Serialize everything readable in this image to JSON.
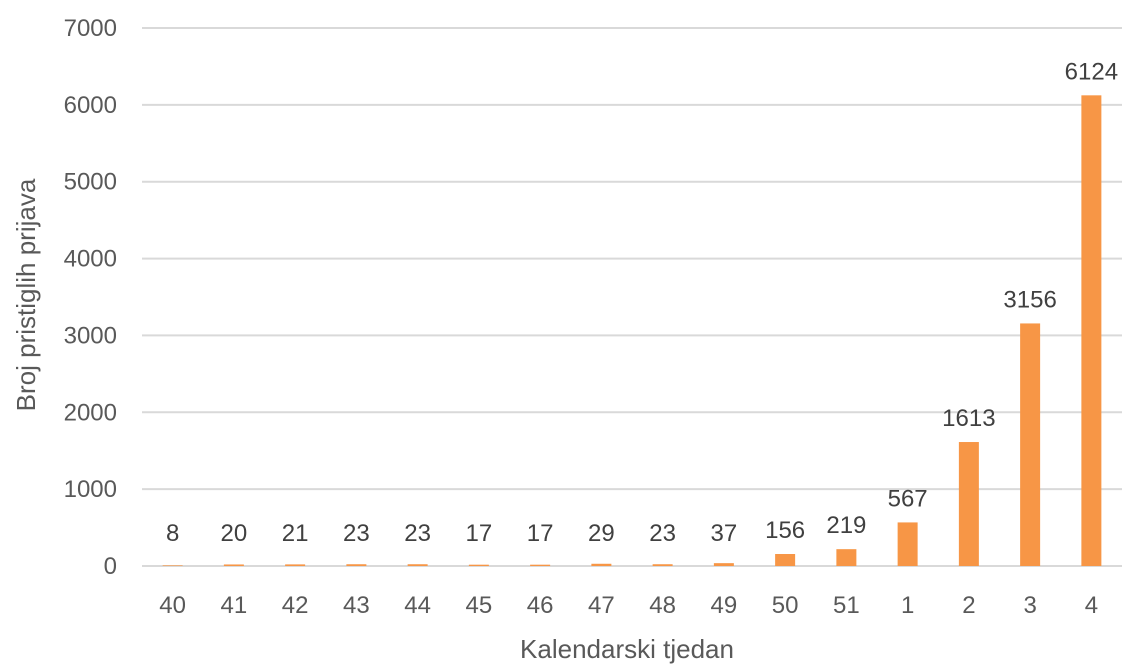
{
  "chart_data": {
    "type": "bar",
    "title": "",
    "xlabel": "Kalendarski tjedan",
    "ylabel": "Broj pristiglih prijava",
    "categories": [
      "40",
      "41",
      "42",
      "43",
      "44",
      "45",
      "46",
      "47",
      "48",
      "49",
      "50",
      "51",
      "1",
      "2",
      "3",
      "4"
    ],
    "values": [
      8,
      20,
      21,
      23,
      23,
      17,
      17,
      29,
      23,
      37,
      156,
      219,
      567,
      1613,
      3156,
      6124
    ],
    "data_labels": [
      "8",
      "20",
      "21",
      "23",
      "23",
      "17",
      "17",
      "29",
      "23",
      "37",
      "156",
      "219",
      "567",
      "1613",
      "3156",
      "6124"
    ],
    "yticks": [
      "0",
      "1000",
      "2000",
      "3000",
      "4000",
      "5000",
      "6000",
      "7000"
    ],
    "ylim": [
      0,
      7000
    ],
    "grid": true,
    "legend": "none",
    "bar_color": "#f79646",
    "grid_color": "#d9d9d9",
    "text_color": "#595959"
  }
}
